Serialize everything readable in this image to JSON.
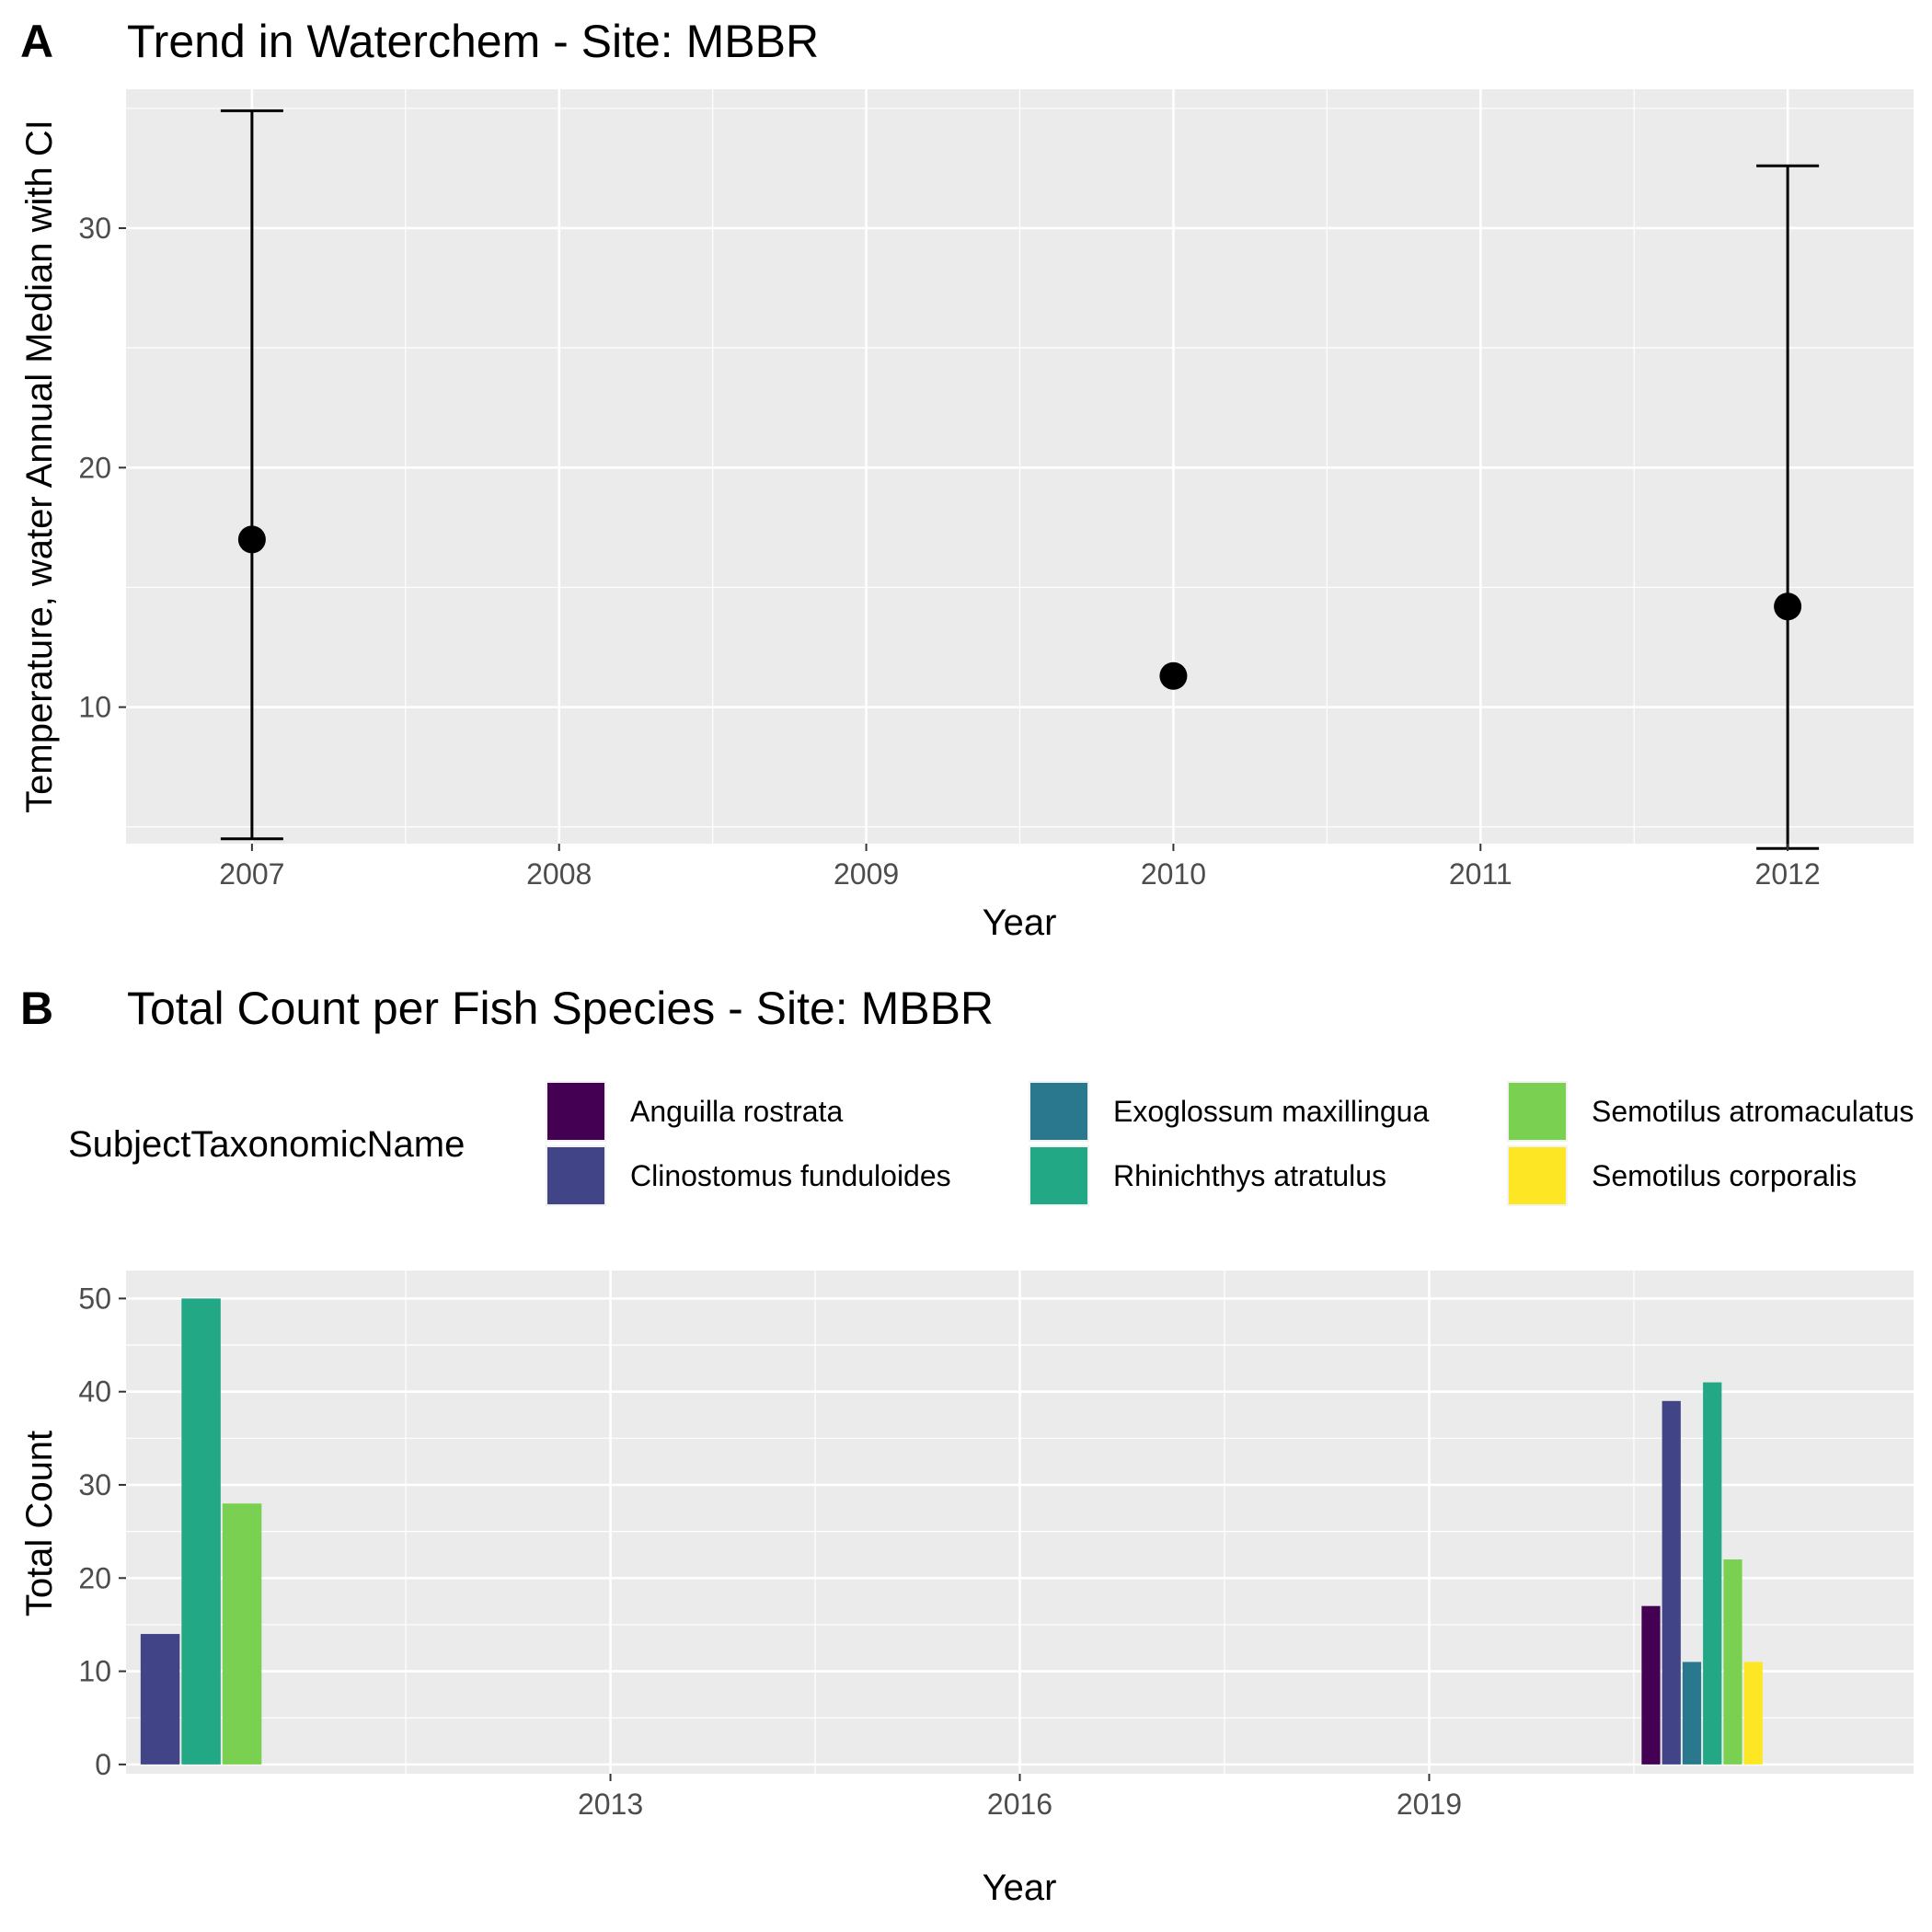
{
  "chart_data": [
    {
      "tag": "A",
      "type": "scatter",
      "title": "Trend in Waterchem - Site: MBBR",
      "xlabel": "Year",
      "ylabel": "Temperature, water Annual Median with CI",
      "xlim": [
        2006.59,
        2012.41
      ],
      "ylim": [
        4.3,
        35.8
      ],
      "x_ticks": [
        2007,
        2008,
        2009,
        2010,
        2011,
        2012
      ],
      "y_ticks": [
        10,
        20,
        30
      ],
      "grid": true,
      "points": [
        {
          "x": 2007,
          "y": 17.0,
          "ci_low": 4.5,
          "ci_high": 34.9
        },
        {
          "x": 2010,
          "y": 11.3
        },
        {
          "x": 2012,
          "y": 14.2,
          "ci_low": 4.1,
          "ci_high": 32.6
        }
      ]
    },
    {
      "tag": "B",
      "type": "bar",
      "title": "Total Count per Fish Species - Site: MBBR",
      "xlabel": "Year",
      "ylabel": "Total Count",
      "xlim": [
        2009.45,
        2022.55
      ],
      "ylim": [
        -1.0,
        53.0
      ],
      "x_ticks": [
        2013,
        2016,
        2019
      ],
      "y_ticks": [
        0,
        10,
        20,
        30,
        40,
        50
      ],
      "grid": true,
      "legend_position": "top",
      "legend_title": "SubjectTaxonomicName",
      "series": [
        {
          "name": "Anguilla rostrata",
          "color": "#440154"
        },
        {
          "name": "Clinostomus funduloides",
          "color": "#414487"
        },
        {
          "name": "Exoglossum maxillingua",
          "color": "#2a788e"
        },
        {
          "name": "Rhinichthys atratulus",
          "color": "#22a884"
        },
        {
          "name": "Semotilus atromaculatus",
          "color": "#7ad151"
        },
        {
          "name": "Semotilus corporalis",
          "color": "#fde725"
        }
      ],
      "bars": [
        {
          "year": 2010,
          "series": "Clinostomus funduloides",
          "value": 14
        },
        {
          "year": 2010,
          "series": "Rhinichthys atratulus",
          "value": 50
        },
        {
          "year": 2010,
          "series": "Semotilus atromaculatus",
          "value": 28
        },
        {
          "year": 2021,
          "series": "Anguilla rostrata",
          "value": 17
        },
        {
          "year": 2021,
          "series": "Clinostomus funduloides",
          "value": 39
        },
        {
          "year": 2021,
          "series": "Exoglossum maxillingua",
          "value": 11
        },
        {
          "year": 2021,
          "series": "Rhinichthys atratulus",
          "value": 41
        },
        {
          "year": 2021,
          "series": "Semotilus atromaculatus",
          "value": 22
        },
        {
          "year": 2021,
          "series": "Semotilus corporalis",
          "value": 11
        }
      ]
    }
  ]
}
